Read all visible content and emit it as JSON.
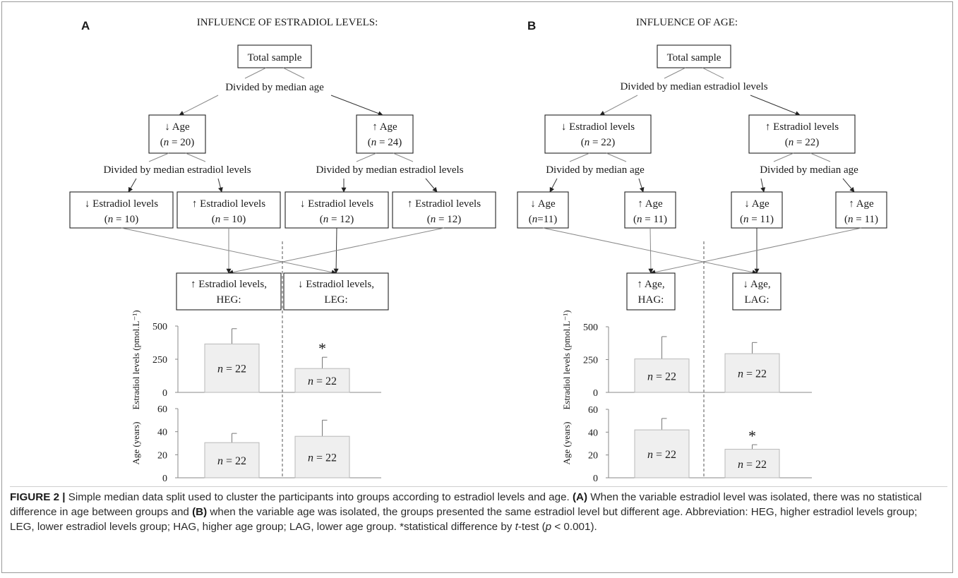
{
  "panels": [
    {
      "letter": "A",
      "title": "INFLUENCE OF ESTRADIOL LEVELS:",
      "total": "Total sample",
      "divider1": "Divided by median age",
      "groups": [
        {
          "arrow": "↓",
          "label": "Age",
          "n": "20"
        },
        {
          "arrow": "↑",
          "label": "Age",
          "n": "24"
        }
      ],
      "divider2": "Divided by median estradiol levels",
      "subgroups": [
        {
          "arrow": "↓",
          "label": "Estradiol levels",
          "n": "10"
        },
        {
          "arrow": "↑",
          "label": "Estradiol levels",
          "n": "10"
        },
        {
          "arrow": "↓",
          "label": "Estradiol levels",
          "n": "12"
        },
        {
          "arrow": "↑",
          "label": "Estradiol levels",
          "n": "12"
        }
      ],
      "results": [
        {
          "line1": "↑ Estradiol levels,",
          "line2": "HEG:"
        },
        {
          "line1": "↓ Estradiol levels,",
          "line2": "LEG:"
        }
      ]
    },
    {
      "letter": "B",
      "title": "INFLUENCE OF AGE:",
      "total": "Total sample",
      "divider1": "Divided by median estradiol levels",
      "groups": [
        {
          "arrow": "↓",
          "label": "Estradiol levels",
          "n": "22"
        },
        {
          "arrow": "↑",
          "label": "Estradiol levels",
          "n": "22"
        }
      ],
      "divider2": "Divided by median age",
      "subgroups": [
        {
          "arrow": "↓",
          "label": "Age",
          "n": "11",
          "eq": "="
        },
        {
          "arrow": "↑",
          "label": "Age",
          "n": "11",
          "eq": " = "
        },
        {
          "arrow": "↓",
          "label": "Age",
          "n": "11",
          "eq": " = "
        },
        {
          "arrow": "↑",
          "label": "Age",
          "n": "11",
          "eq": " = "
        }
      ],
      "results": [
        {
          "line1": "↑ Age,",
          "line2": "HAG:"
        },
        {
          "line1": "↓ Age,",
          "line2": "LAG:"
        }
      ]
    }
  ],
  "chart_data": [
    {
      "panel": "A",
      "type": "bar",
      "ylabel": "Estradiol levels (pmol.L⁻¹)",
      "ylim": [
        0,
        500
      ],
      "yticks": [
        0,
        250,
        500
      ],
      "categories": [
        "HEG",
        "LEG"
      ],
      "values": [
        365,
        180
      ],
      "errors": [
        115,
        85
      ],
      "bar_labels": [
        "n = 22",
        "n = 22"
      ],
      "significance": [
        "",
        "*"
      ]
    },
    {
      "panel": "A",
      "type": "bar",
      "ylabel": "Age (years)",
      "ylim": [
        0,
        60
      ],
      "yticks": [
        0,
        20,
        40,
        60
      ],
      "categories": [
        "HEG",
        "LEG"
      ],
      "values": [
        30.5,
        36
      ],
      "errors": [
        8,
        14
      ],
      "bar_labels": [
        "n = 22",
        "n = 22"
      ],
      "significance": [
        "",
        ""
      ]
    },
    {
      "panel": "B",
      "type": "bar",
      "ylabel": "Estradiol levels (pmol.L⁻¹)",
      "ylim": [
        0,
        500
      ],
      "yticks": [
        0,
        250,
        500
      ],
      "categories": [
        "HAG",
        "LAG"
      ],
      "values": [
        255,
        295
      ],
      "errors": [
        170,
        85
      ],
      "bar_labels": [
        "n = 22",
        "n = 22"
      ],
      "significance": [
        "",
        ""
      ]
    },
    {
      "panel": "B",
      "type": "bar",
      "ylabel": "Age (years)",
      "ylim": [
        0,
        60
      ],
      "yticks": [
        0,
        20,
        40,
        60
      ],
      "categories": [
        "HAG",
        "LAG"
      ],
      "values": [
        42,
        25
      ],
      "errors": [
        10,
        4
      ],
      "bar_labels": [
        "n = 22",
        "n = 22"
      ],
      "significance": [
        "",
        "*"
      ]
    }
  ],
  "caption": {
    "label": "FIGURE 2 |",
    "t1": " Simple median data split used to cluster the participants into groups according to estradiol levels and age. ",
    "bA": "(A)",
    "t2": " When the variable estradiol level was isolated, there was no statistical difference in age between groups and ",
    "bB": "(B)",
    "t3": " when the variable age was isolated, the groups presented the same estradiol level but different age. Abbreviation: HEG, higher estradiol levels group; LEG, lower estradiol levels group; HAG, higher age group; LAG, lower age group. *statistical difference by ",
    "ital_t": "t",
    "t4": "-test (",
    "ital_p": "p",
    "t5": " < 0.001)."
  },
  "colors": {
    "bar_fill": "#efefef",
    "bar_stroke": "#b9b9b9",
    "line": "#333333",
    "light_line": "#8a8a8a",
    "text": "#1a1a1a"
  }
}
